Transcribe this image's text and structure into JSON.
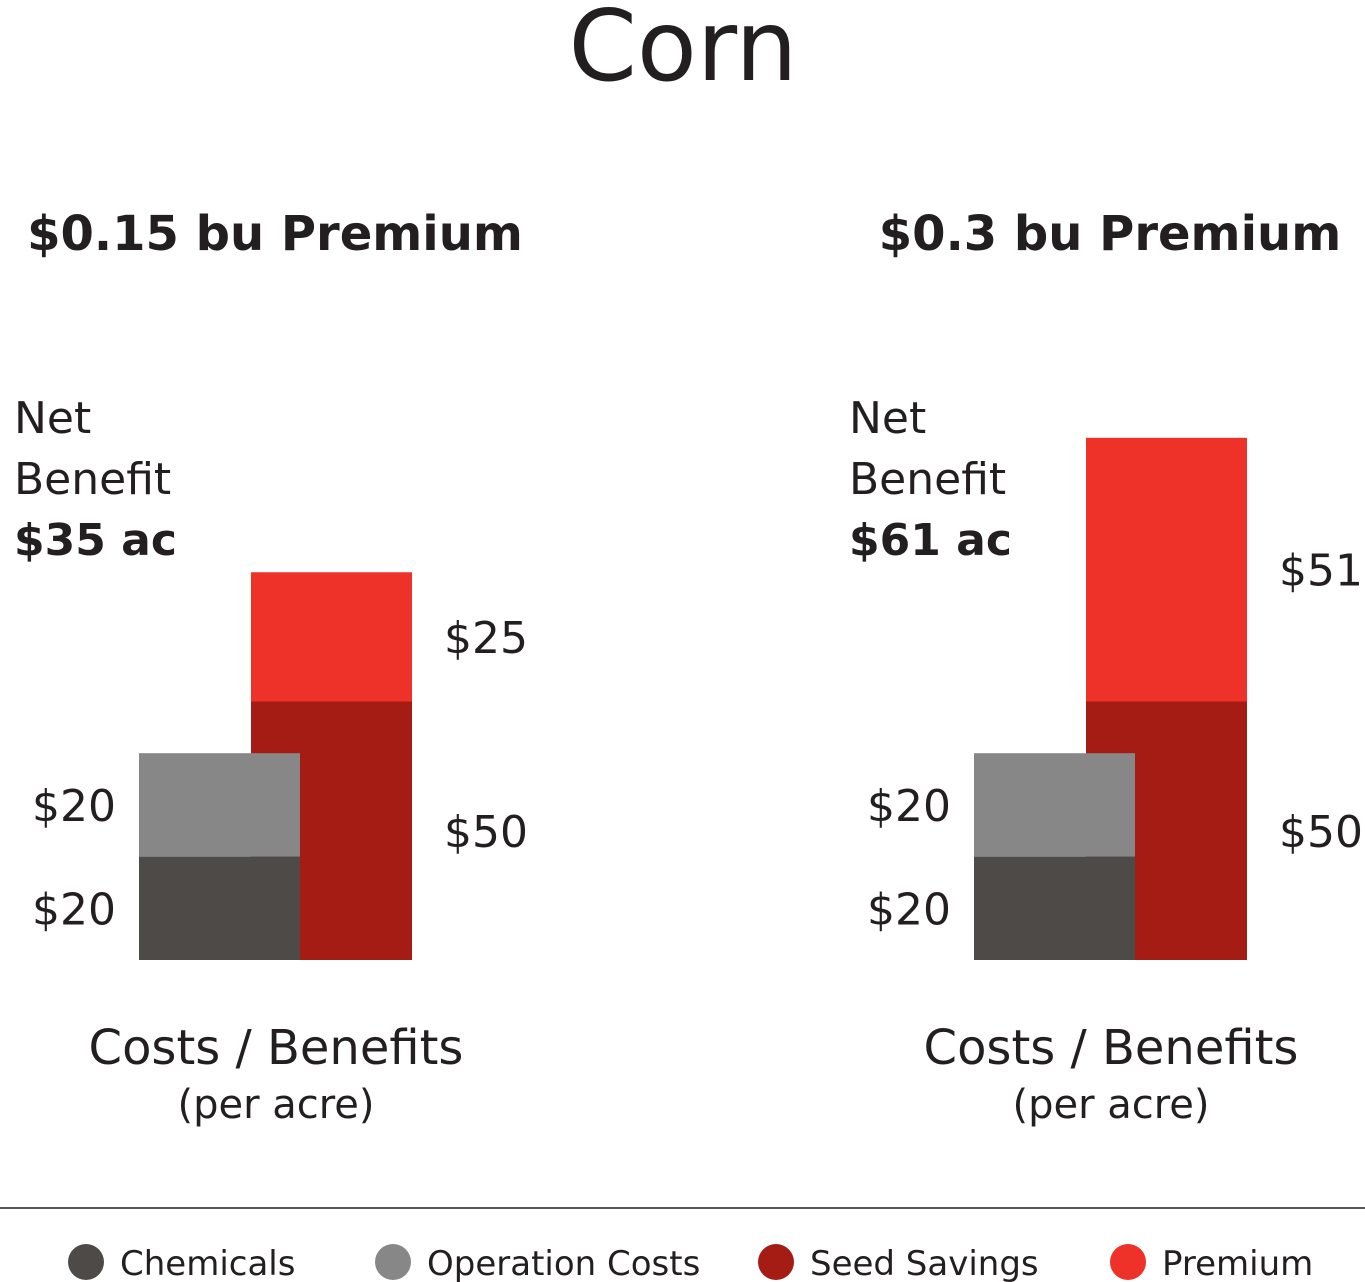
{
  "title": "Corn",
  "colors": {
    "Chemicals": "#4e4a47",
    "Operation Costs": "#878787",
    "Seed Savings": "#a51c15",
    "Premium": "#ee3129"
  },
  "legend": [
    "Chemicals",
    "Operation Costs",
    "Seed Savings",
    "Premium"
  ],
  "chart_data": [
    {
      "type": "bar",
      "title": "$0.15 bu Premium",
      "net_benefit": {
        "line1": "Net",
        "line2": "Benefit",
        "value": "$35 ac"
      },
      "xlabel": "Costs / Benefits",
      "xlabel_sub": "(per acre)",
      "costs": [
        {
          "name": "Chemicals",
          "value": 20,
          "label": "$20"
        },
        {
          "name": "Operation Costs",
          "value": 20,
          "label": "$20"
        }
      ],
      "benefits": [
        {
          "name": "Seed Savings",
          "value": 50,
          "label": "$50"
        },
        {
          "name": "Premium",
          "value": 25,
          "label": "$25"
        }
      ]
    },
    {
      "type": "bar",
      "title": "$0.3 bu Premium",
      "net_benefit": {
        "line1": "Net",
        "line2": "Benefit",
        "value": "$61 ac"
      },
      "xlabel": "Costs / Benefits",
      "xlabel_sub": "(per acre)",
      "costs": [
        {
          "name": "Chemicals",
          "value": 20,
          "label": "$20"
        },
        {
          "name": "Operation Costs",
          "value": 20,
          "label": "$20"
        }
      ],
      "benefits": [
        {
          "name": "Seed Savings",
          "value": 50,
          "label": "$50"
        },
        {
          "name": "Premium",
          "value": 51,
          "label": "$51"
        }
      ]
    }
  ]
}
